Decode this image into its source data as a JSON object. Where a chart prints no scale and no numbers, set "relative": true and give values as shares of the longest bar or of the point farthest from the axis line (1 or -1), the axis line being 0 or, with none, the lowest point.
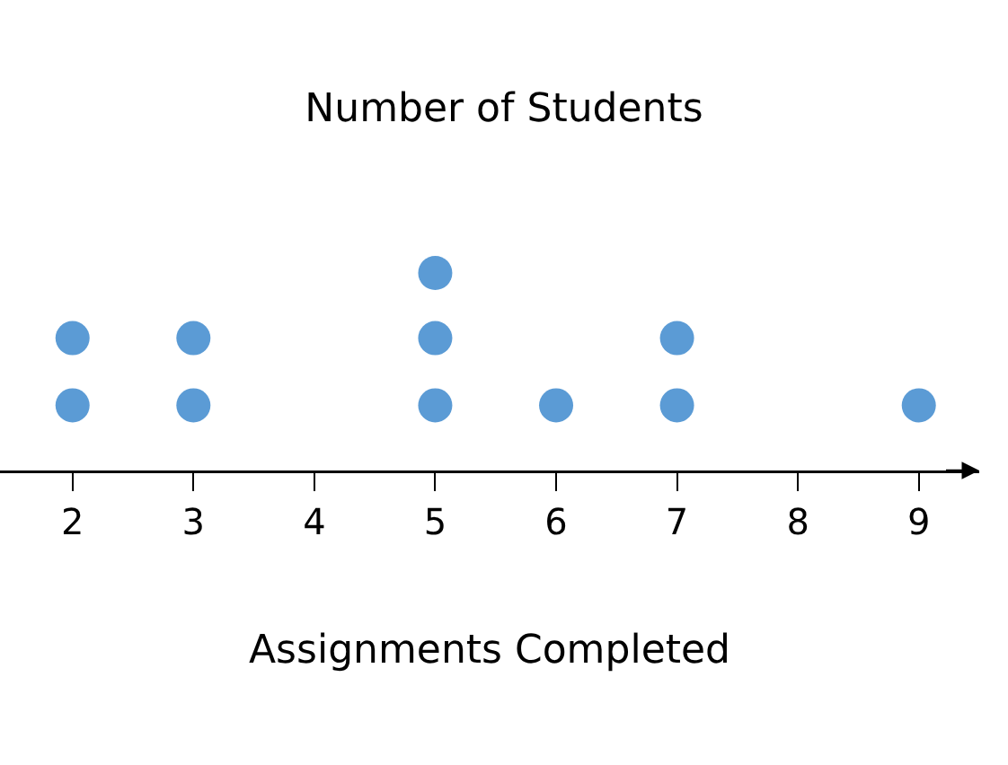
{
  "chart_data": {
    "type": "scatter",
    "title": "Number of Students",
    "xlabel": "Assignments Completed",
    "x": [
      2,
      2,
      3,
      3,
      5,
      5,
      5,
      6,
      7,
      7,
      9
    ],
    "values": [
      0.33,
      0.67,
      0.33,
      0.67,
      0.33,
      0.67,
      1,
      0.33,
      0.33,
      0.67,
      0.33
    ],
    "color": "#5b9bd5",
    "marker": "circle",
    "relative": true,
    "xlim": [
      1.4,
      9.5
    ],
    "xticks": [
      2,
      3,
      4,
      5,
      6,
      7,
      8,
      9
    ]
  }
}
